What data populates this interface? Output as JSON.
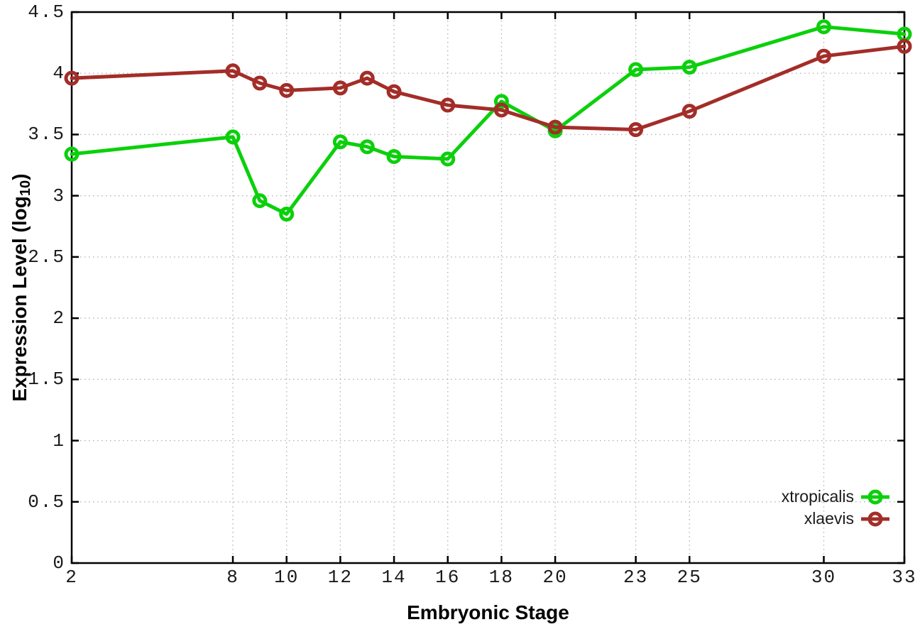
{
  "figure": {
    "background": "#ffffff",
    "plot_border_color": "#000000",
    "grid_color": "#b5b5b5"
  },
  "chart_data": {
    "type": "line",
    "title": "",
    "xlabel": "Embryonic Stage",
    "ylabel": "Expression Level (log10)",
    "ylabel_prefix": "Expression Level (log",
    "ylabel_sub": "10",
    "ylabel_suffix": ")",
    "x": [
      2,
      8,
      9,
      10,
      12,
      13,
      14,
      16,
      18,
      20,
      23,
      25,
      30,
      33
    ],
    "x_ticks": [
      2,
      8,
      10,
      12,
      14,
      16,
      18,
      20,
      23,
      25,
      30,
      33
    ],
    "y_ticks": [
      0,
      0.5,
      1,
      1.5,
      2,
      2.5,
      3,
      3.5,
      4,
      4.5
    ],
    "xlim": [
      2,
      33
    ],
    "ylim": [
      0,
      4.5
    ],
    "grid": "dotted",
    "legend_position": "inside-bottom-right",
    "series": [
      {
        "name": "xtropicalis",
        "color": "#0bd00b",
        "values": [
          3.34,
          3.48,
          2.96,
          2.85,
          3.44,
          3.4,
          3.32,
          3.3,
          3.77,
          3.53,
          4.03,
          4.05,
          4.38,
          4.32
        ]
      },
      {
        "name": "xlaevis",
        "color": "#a32d28",
        "values": [
          3.96,
          4.02,
          3.92,
          3.86,
          3.88,
          3.96,
          3.85,
          3.74,
          3.7,
          3.56,
          3.54,
          3.69,
          4.14,
          4.22
        ]
      }
    ]
  }
}
